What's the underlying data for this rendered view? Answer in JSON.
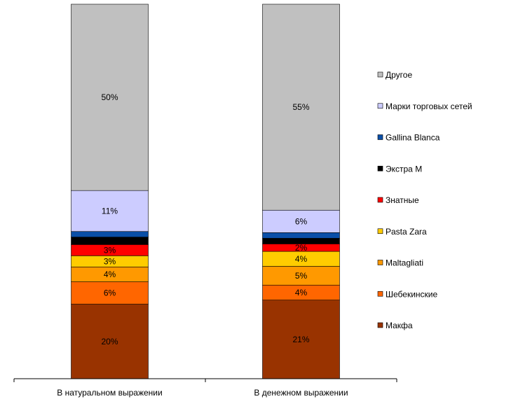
{
  "chart_data": {
    "type": "bar",
    "stacked": true,
    "percent_stacked": true,
    "categories": [
      "В натуральном выражении",
      "В денежном выражении"
    ],
    "series": [
      {
        "name": "Макфа",
        "color": "#993300",
        "values": [
          20,
          21
        ],
        "labels": [
          "20%",
          "21%"
        ]
      },
      {
        "name": "Шебекинские",
        "color": "#FF6600",
        "values": [
          6,
          4
        ],
        "labels": [
          "6%",
          "4%"
        ]
      },
      {
        "name": "Maltagliati",
        "color": "#FF9900",
        "values": [
          4,
          5
        ],
        "labels": [
          "4%",
          "5%"
        ]
      },
      {
        "name": "Pasta Zara",
        "color": "#FFCC00",
        "values": [
          3,
          4
        ],
        "labels": [
          "3%",
          "4%"
        ]
      },
      {
        "name": "Знатные",
        "color": "#FF0000",
        "values": [
          3,
          2
        ],
        "labels": [
          "3%",
          "2%"
        ]
      },
      {
        "name": "Экстра М",
        "color": "#000000",
        "values": [
          2,
          1.5
        ],
        "labels": [
          "",
          ""
        ]
      },
      {
        "name": "Gallina Blanca",
        "color": "#0A4FA8",
        "values": [
          1.5,
          1.5
        ],
        "labels": [
          "",
          ""
        ]
      },
      {
        "name": "Марки торговых сетей",
        "color": "#CCCCFF",
        "values": [
          11,
          6
        ],
        "labels": [
          "11%",
          "6%"
        ]
      },
      {
        "name": "Другое",
        "color": "#C0C0C0",
        "values": [
          50,
          55
        ],
        "labels": [
          "50%",
          "55%"
        ]
      }
    ],
    "ylim": [
      0,
      100
    ],
    "grid": false,
    "legend": "right",
    "title": "",
    "xlabel": "",
    "ylabel": ""
  }
}
